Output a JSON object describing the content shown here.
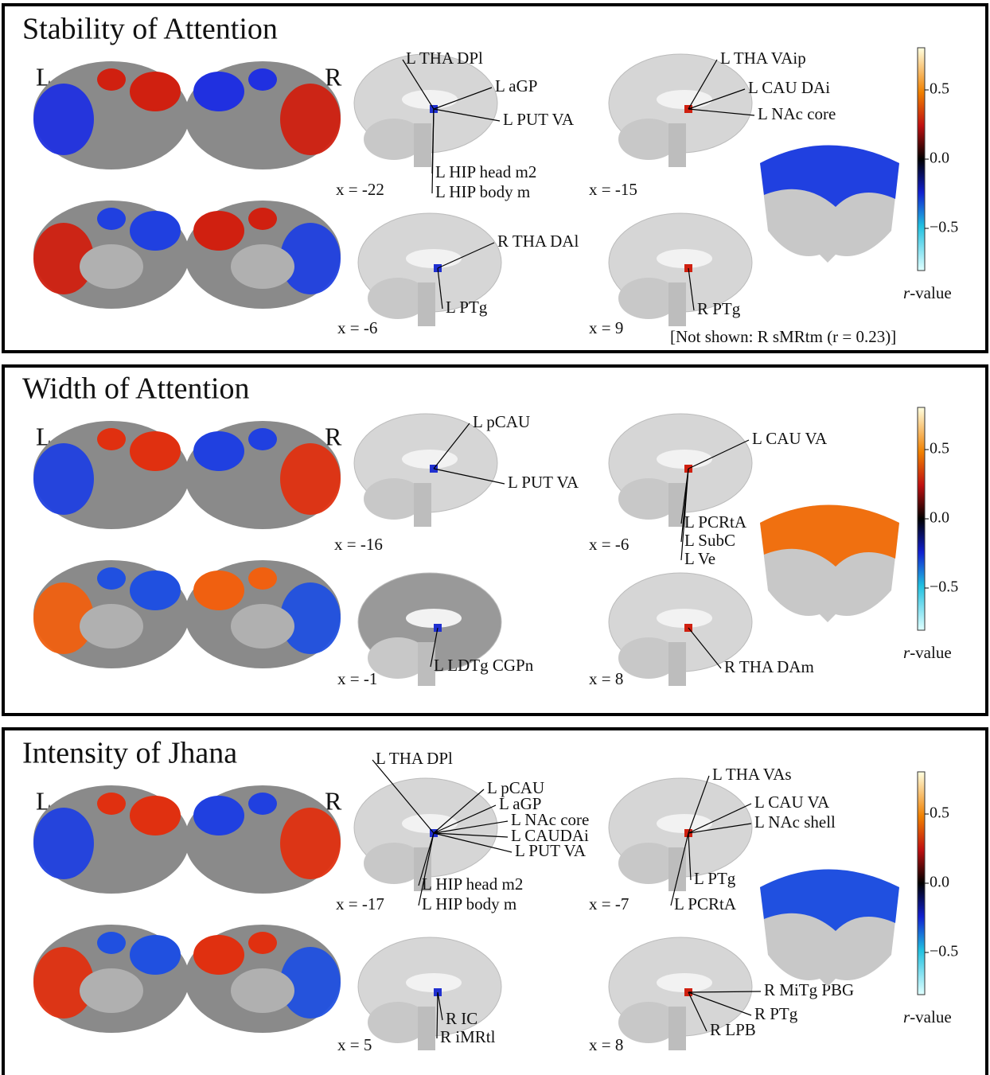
{
  "panels": [
    {
      "title": "Stability of Attention",
      "hemispheres": [
        "L",
        "R"
      ],
      "slices": [
        {
          "x_label": "x = -22",
          "labels": [
            "L THA DPl",
            "L aGP",
            "L PUT VA",
            "L HIP head m2",
            "L HIP body m"
          ]
        },
        {
          "x_label": "x = -15",
          "labels": [
            "L THA VAip",
            "L CAU DAi",
            "L NAc core"
          ]
        },
        {
          "x_label": "x = -6",
          "labels": [
            "R THA DAl",
            "L PTg"
          ]
        },
        {
          "x_label": "x = 9",
          "labels": [
            "R PTg"
          ]
        }
      ],
      "note": "[Not shown: R sMRtm (r = 0.23)]",
      "colorbar": {
        "ticks": [
          "0.5",
          "0.0",
          "−0.5"
        ],
        "label_var": "r",
        "label_suffix": "-value"
      }
    },
    {
      "title": "Width of Attention",
      "hemispheres": [
        "L",
        "R"
      ],
      "slices": [
        {
          "x_label": "x = -16",
          "labels": [
            "L pCAU",
            "L PUT VA"
          ]
        },
        {
          "x_label": "x = -6",
          "labels": [
            "L CAU VA",
            "L PCRtA",
            "L SubC",
            "L Ve"
          ]
        },
        {
          "x_label": "x = -1",
          "labels": [
            "L LDTg CGPn"
          ]
        },
        {
          "x_label": "x = 8",
          "labels": [
            "R THA DAm"
          ]
        }
      ],
      "colorbar": {
        "ticks": [
          "0.5",
          "0.0",
          "−0.5"
        ],
        "label_var": "r",
        "label_suffix": "-value"
      }
    },
    {
      "title": "Intensity of Jhana",
      "hemispheres": [
        "L",
        "R"
      ],
      "slices": [
        {
          "x_label": "x = -17",
          "labels": [
            "L THA DPl",
            "L pCAU",
            "L aGP",
            "L NAc core",
            "L CAUDAi",
            "L PUT VA",
            "L HIP head m2",
            "L HIP body m"
          ]
        },
        {
          "x_label": "x = -7",
          "labels": [
            "L THA VAs",
            "L CAU VA",
            "L NAc shell",
            "L PTg",
            "L PCRtA"
          ]
        },
        {
          "x_label": "x = 5",
          "labels": [
            "R IC",
            "R iMRtl"
          ]
        },
        {
          "x_label": "x = 8",
          "labels": [
            "R MiTg PBG",
            "R PTg",
            "R LPB"
          ]
        }
      ],
      "colorbar": {
        "ticks": [
          "0.5",
          "0.0",
          "−0.5"
        ],
        "label_var": "r",
        "label_suffix": "-value"
      }
    }
  ]
}
